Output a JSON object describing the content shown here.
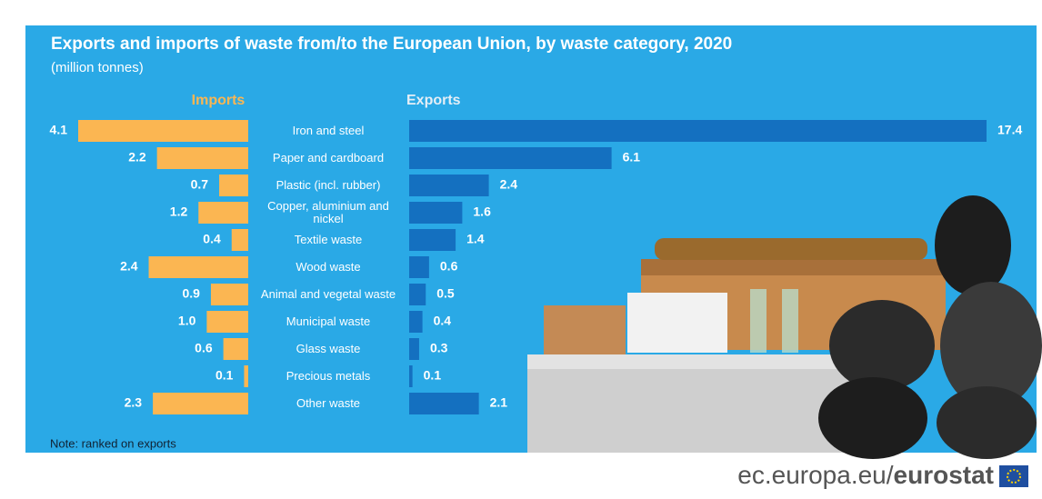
{
  "chart_data": {
    "type": "butterfly",
    "title": "Exports and imports of waste from/to the European Union, by waste category, 2020",
    "subtitle": "(million tonnes)",
    "note": "Note: ranked on exports",
    "categories": [
      "Iron and steel",
      "Paper and cardboard",
      "Plastic (incl. rubber)",
      "Copper, aluminium and nickel",
      "Textile waste",
      "Wood waste",
      "Animal and vegetal waste",
      "Municipal waste",
      "Glass waste",
      "Precious metals",
      "Other waste"
    ],
    "series": [
      {
        "name": "Imports",
        "color": "#fbb652",
        "side": "left",
        "values": [
          4.1,
          2.2,
          0.7,
          1.2,
          0.4,
          2.4,
          0.9,
          1.0,
          0.6,
          0.1,
          2.3
        ],
        "value_labels": [
          "4.1",
          "2.2",
          "0.7",
          "1.2",
          "0.4",
          "2.4",
          "0.9",
          "1.0",
          "0.6",
          "0.1",
          "2.3"
        ]
      },
      {
        "name": "Exports",
        "color": "#1470c0",
        "side": "right",
        "values": [
          17.4,
          6.1,
          2.4,
          1.6,
          1.4,
          0.6,
          0.5,
          0.4,
          0.3,
          0.1,
          2.1
        ]
      }
    ]
  },
  "footer": {
    "site": "ec.europa.eu/",
    "brand": "eurostat"
  }
}
